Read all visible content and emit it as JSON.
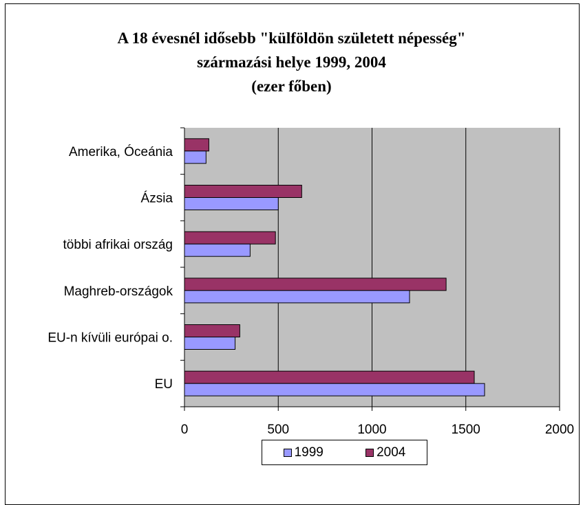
{
  "chart_data": {
    "type": "bar",
    "orientation": "horizontal",
    "title": [
      "A 18 évesnél idősebb \"külföldön született népesség\"",
      "származási helye 1999, 2004",
      "(ezer főben)"
    ],
    "categories": [
      "Amerika, Óceánia",
      "Ázsia",
      "többi afrikai ország",
      "Maghreb-országok",
      "EU-n kívüli európai o.",
      "EU"
    ],
    "series": [
      {
        "name": "1999",
        "color": "#9999FF",
        "values": [
          115,
          500,
          350,
          1200,
          270,
          1600
        ]
      },
      {
        "name": "2004",
        "color": "#993366",
        "values": [
          130,
          625,
          485,
          1395,
          295,
          1545
        ]
      }
    ],
    "xlim": [
      0,
      2000
    ],
    "xticks": [
      "0",
      "500",
      "1000",
      "1500",
      "2000"
    ],
    "grid": true,
    "plot_background": "#C0C0C0",
    "legend_placement": "bottom"
  }
}
